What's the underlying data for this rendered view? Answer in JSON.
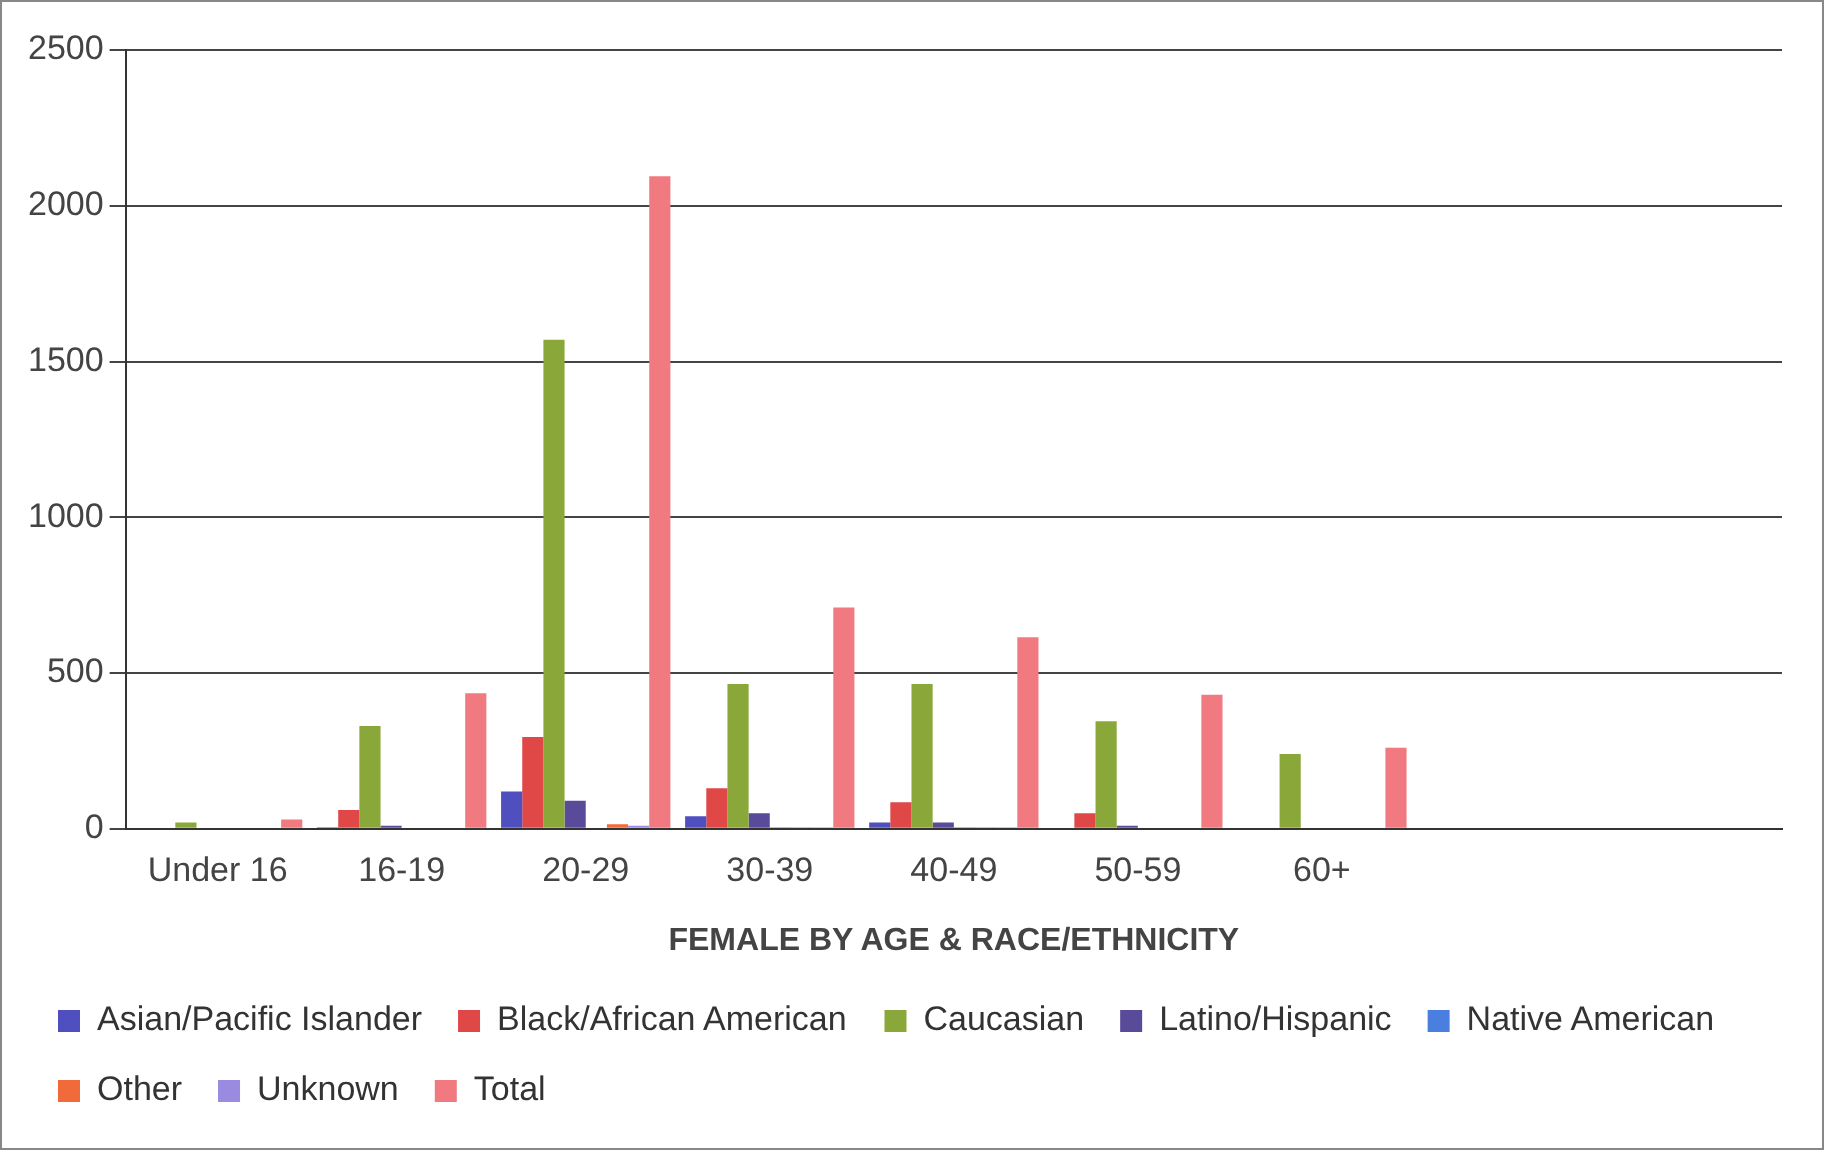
{
  "chart_data": {
    "type": "bar",
    "xlabel": "FEMALE BY AGE & RACE/ETHNICITY",
    "categories": [
      "Under 16",
      "16-19",
      "20-29",
      "30-39",
      "40-49",
      "50-59",
      "60+",
      null,
      null
    ],
    "series": [
      {
        "name": "Asian/Pacific Islander",
        "color": "#4f4fbf",
        "values": [
          0,
          5,
          120,
          40,
          20,
          0,
          0,
          null,
          null
        ]
      },
      {
        "name": "Black/African American",
        "color": "#e04848",
        "values": [
          0,
          60,
          295,
          130,
          85,
          50,
          0,
          null,
          null
        ]
      },
      {
        "name": "Caucasian",
        "color": "#8aa83a",
        "values": [
          20,
          330,
          1570,
          465,
          465,
          345,
          240,
          null,
          null
        ]
      },
      {
        "name": "Latino/Hispanic",
        "color": "#5a4a9a",
        "values": [
          0,
          10,
          90,
          50,
          20,
          10,
          0,
          null,
          null
        ]
      },
      {
        "name": "Native American",
        "color": "#4a7fdf",
        "values": [
          0,
          0,
          0,
          5,
          5,
          0,
          0,
          null,
          null
        ]
      },
      {
        "name": "Other",
        "color": "#f06a3a",
        "values": [
          0,
          0,
          15,
          5,
          5,
          0,
          0,
          null,
          null
        ]
      },
      {
        "name": "Unknown",
        "color": "#9a8ae0",
        "values": [
          0,
          0,
          10,
          5,
          5,
          0,
          0,
          null,
          null
        ]
      },
      {
        "name": "Total",
        "color": "#f07a80",
        "values": [
          30,
          435,
          2095,
          710,
          615,
          430,
          260,
          null,
          null
        ]
      }
    ],
    "ylim": [
      0,
      2500
    ],
    "yticks": [
      0,
      500,
      1000,
      1500,
      2000,
      2500
    ],
    "grid": "y",
    "legend": "bottom"
  }
}
